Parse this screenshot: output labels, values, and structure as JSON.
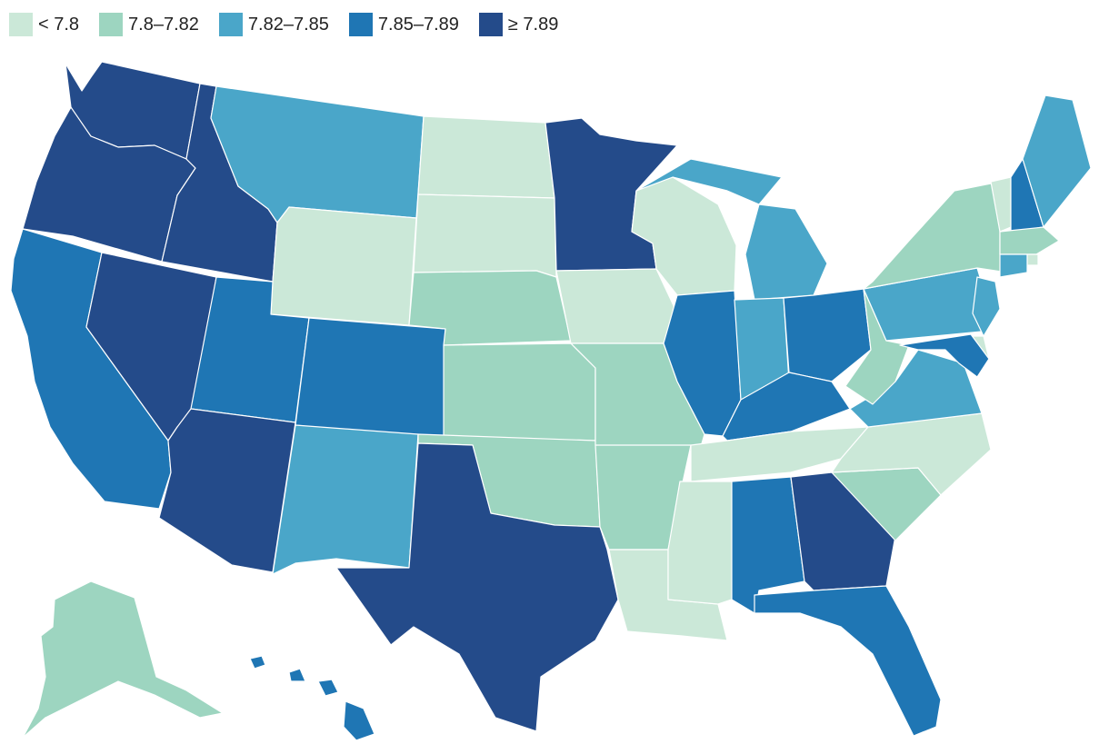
{
  "legend": [
    {
      "label": "< 7.8",
      "color": "#cbe8d8"
    },
    {
      "label": "7.8–7.82",
      "color": "#9dd5c0"
    },
    {
      "label": "7.82–7.85",
      "color": "#4aa6c9"
    },
    {
      "label": "7.85–7.89",
      "color": "#1f76b4"
    },
    {
      "label": "≥ 7.89",
      "color": "#244b8a"
    }
  ],
  "states": {
    "WA": 4,
    "OR": 4,
    "CA": 3,
    "NV": 4,
    "ID": 4,
    "MT": 2,
    "WY": 0,
    "UT": 3,
    "AZ": 4,
    "CO": 3,
    "NM": 2,
    "ND": 0,
    "SD": 0,
    "NE": 1,
    "KS": 1,
    "OK": 1,
    "TX": 4,
    "MN": 4,
    "IA": 0,
    "MO": 1,
    "AR": 1,
    "LA": 0,
    "WI": 0,
    "IL": 3,
    "MI": 2,
    "IN": 2,
    "OH": 3,
    "KY": 3,
    "TN": 0,
    "MS": 0,
    "AL": 3,
    "GA": 4,
    "FL": 3,
    "SC": 1,
    "NC": 0,
    "VA": 2,
    "WV": 1,
    "PA": 2,
    "NY": 1,
    "VT": 0,
    "NH": 3,
    "ME": 2,
    "MA": 1,
    "RI": 0,
    "CT": 2,
    "NJ": 2,
    "DE": 0,
    "MD": 3,
    "AK": 1,
    "HI": 3
  }
}
